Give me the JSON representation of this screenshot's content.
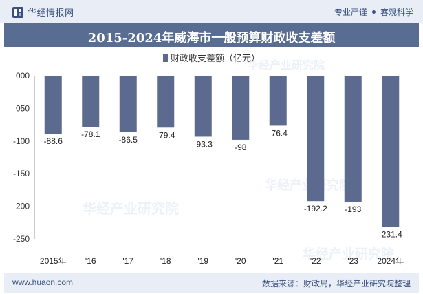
{
  "header": {
    "brand": "华经情报网",
    "tags": [
      "专业严谨",
      "客观科学"
    ]
  },
  "footer": {
    "website": "www.huaon.com",
    "source": "数据来源：财政局，华经产业研究院整理"
  },
  "watermark": "华经产业研究院",
  "colors": {
    "bar": "#5b6a8e",
    "title_bg": "#596d93",
    "band_bg": "#e9eef6"
  },
  "chart_data": {
    "type": "bar",
    "title": "2015-2024年威海市一般预算财政收支差额",
    "categories": [
      "2015年",
      "'16",
      "'17",
      "'18",
      "'19",
      "'20",
      "'21",
      "'22",
      "'23",
      "2024年"
    ],
    "series": [
      {
        "name": "财政收支差额（亿元）",
        "values": [
          -88.6,
          -78.1,
          -86.5,
          -79.4,
          -93.3,
          -98,
          -76.4,
          -192.2,
          -193,
          -231.4
        ]
      }
    ],
    "data_labels": [
      "-88.6",
      "-78.1",
      "-86.5",
      "-79.4",
      "-93.3",
      "-98",
      "-76.4",
      "-192.2",
      "-193",
      "-231.4"
    ],
    "yticks": [
      "000",
      "-050",
      "-100",
      "-150",
      "-200",
      "-250"
    ],
    "ylim": [
      -250,
      0
    ],
    "grid": false,
    "legend": "top-center"
  }
}
